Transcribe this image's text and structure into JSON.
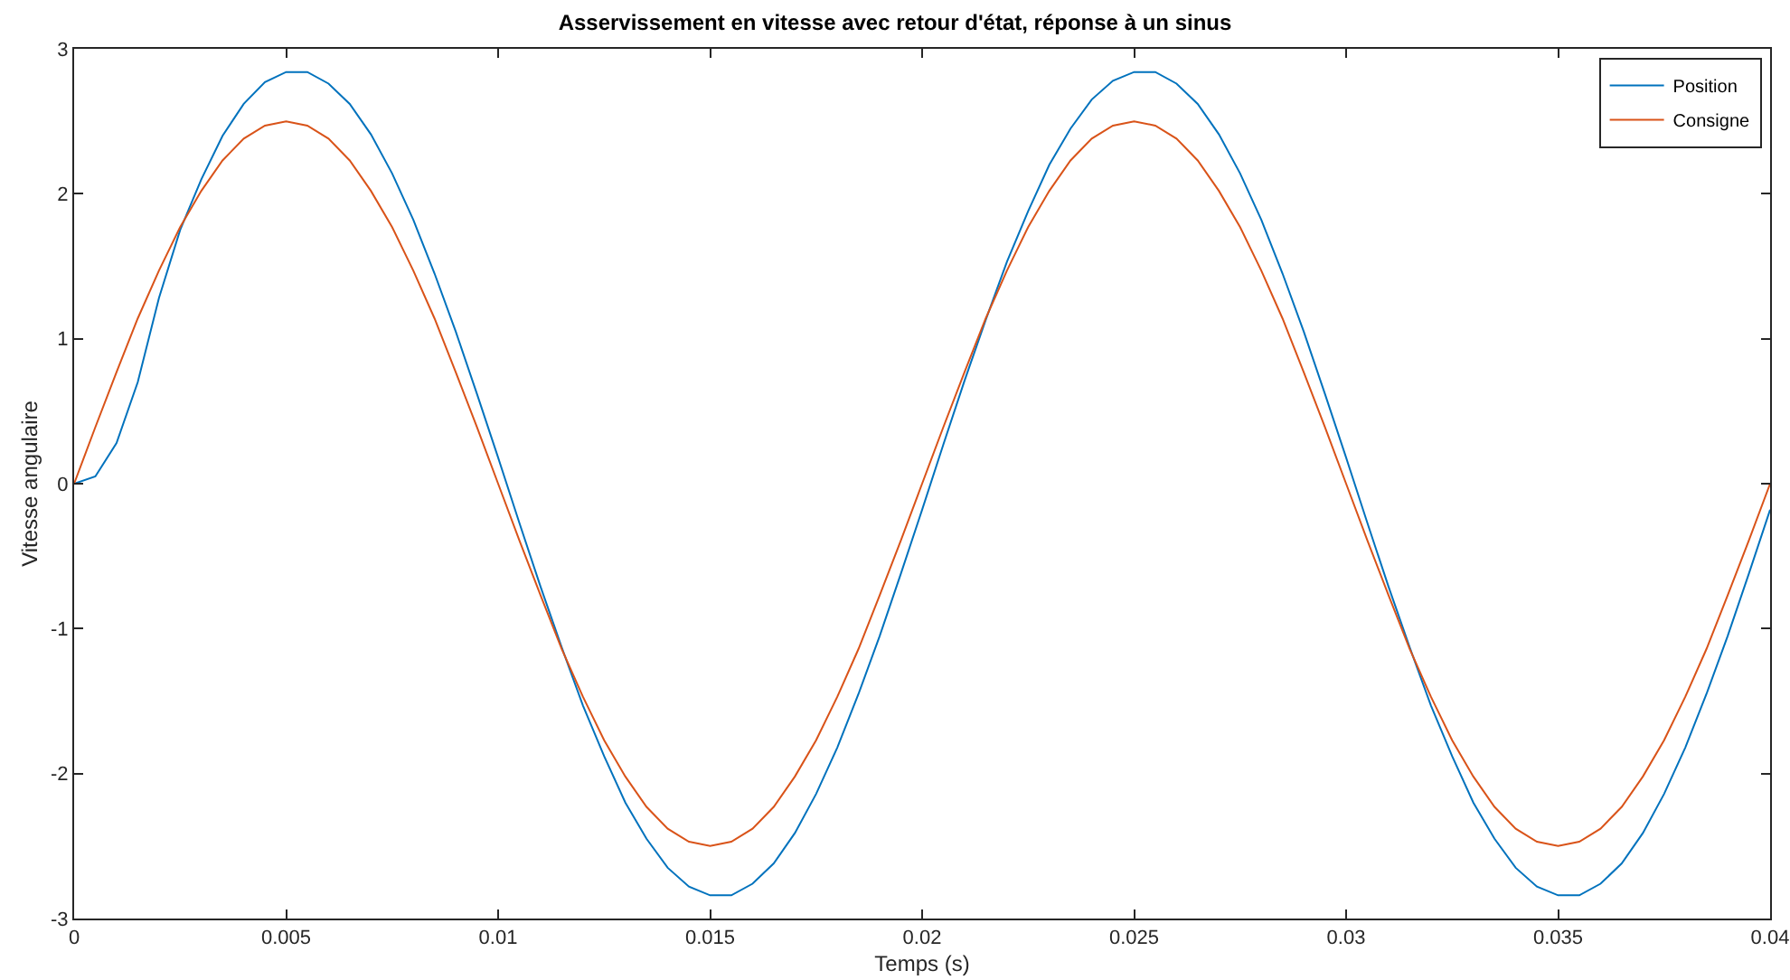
{
  "chart_data": {
    "type": "line",
    "title": "Asservissement en vitesse avec retour d'état, réponse à un sinus",
    "xlabel": "Temps (s)",
    "ylabel": "Vitesse angulaire",
    "x": [
      0,
      0.0005,
      0.001,
      0.0015,
      0.002,
      0.0025,
      0.003,
      0.0035,
      0.004,
      0.0045,
      0.005,
      0.0055,
      0.006,
      0.0065,
      0.007,
      0.0075,
      0.008,
      0.0085,
      0.009,
      0.0095,
      0.01,
      0.0105,
      0.011,
      0.0115,
      0.012,
      0.0125,
      0.013,
      0.0135,
      0.014,
      0.0145,
      0.015,
      0.0155,
      0.016,
      0.0165,
      0.017,
      0.0175,
      0.018,
      0.0185,
      0.019,
      0.0195,
      0.02,
      0.0205,
      0.021,
      0.0215,
      0.022,
      0.0225,
      0.023,
      0.0235,
      0.024,
      0.0245,
      0.025,
      0.0255,
      0.026,
      0.0265,
      0.027,
      0.0275,
      0.028,
      0.0285,
      0.029,
      0.0295,
      0.03,
      0.0305,
      0.031,
      0.0315,
      0.032,
      0.0325,
      0.033,
      0.0335,
      0.034,
      0.0345,
      0.035,
      0.0355,
      0.036,
      0.0365,
      0.037,
      0.0375,
      0.038,
      0.0385,
      0.039,
      0.0395,
      0.04
    ],
    "series": [
      {
        "name": "Position",
        "color": "#0072bd",
        "values": [
          0,
          0.05,
          0.28,
          0.7,
          1.28,
          1.75,
          2.1,
          2.4,
          2.62,
          2.77,
          2.84,
          2.84,
          2.76,
          2.62,
          2.41,
          2.14,
          1.82,
          1.45,
          1.05,
          0.62,
          0.18,
          -0.27,
          -0.71,
          -1.13,
          -1.53,
          -1.88,
          -2.2,
          -2.45,
          -2.65,
          -2.78,
          -2.84,
          -2.84,
          -2.76,
          -2.62,
          -2.41,
          -2.14,
          -1.82,
          -1.45,
          -1.05,
          -0.62,
          -0.18,
          0.27,
          0.71,
          1.13,
          1.53,
          1.88,
          2.2,
          2.45,
          2.65,
          2.78,
          2.84,
          2.84,
          2.76,
          2.62,
          2.41,
          2.14,
          1.82,
          1.45,
          1.05,
          0.62,
          0.18,
          -0.27,
          -0.71,
          -1.13,
          -1.53,
          -1.88,
          -2.2,
          -2.45,
          -2.65,
          -2.78,
          -2.84,
          -2.84,
          -2.76,
          -2.62,
          -2.41,
          -2.14,
          -1.82,
          -1.45,
          -1.05,
          -0.62,
          -0.18
        ]
      },
      {
        "name": "Consigne",
        "color": "#d95319",
        "values": [
          0,
          0.39,
          0.77,
          1.14,
          1.47,
          1.77,
          2.02,
          2.23,
          2.38,
          2.47,
          2.5,
          2.47,
          2.38,
          2.23,
          2.02,
          1.77,
          1.47,
          1.14,
          0.77,
          0.39,
          0,
          -0.39,
          -0.77,
          -1.14,
          -1.47,
          -1.77,
          -2.02,
          -2.23,
          -2.38,
          -2.47,
          -2.5,
          -2.47,
          -2.38,
          -2.23,
          -2.02,
          -1.77,
          -1.47,
          -1.14,
          -0.77,
          -0.39,
          0,
          0.39,
          0.77,
          1.14,
          1.47,
          1.77,
          2.02,
          2.23,
          2.38,
          2.47,
          2.5,
          2.47,
          2.38,
          2.23,
          2.02,
          1.77,
          1.47,
          1.14,
          0.77,
          0.39,
          0,
          -0.39,
          -0.77,
          -1.14,
          -1.47,
          -1.77,
          -2.02,
          -2.23,
          -2.38,
          -2.47,
          -2.5,
          -2.47,
          -2.38,
          -2.23,
          -2.02,
          -1.77,
          -1.47,
          -1.14,
          -0.77,
          -0.39,
          0
        ]
      }
    ],
    "xlim": [
      0,
      0.04
    ],
    "xticks": [
      0,
      0.005,
      0.01,
      0.015,
      0.02,
      0.025,
      0.03,
      0.035,
      0.04
    ],
    "ylim": [
      -3,
      3
    ],
    "yticks": [
      -3,
      -2,
      -1,
      0,
      1,
      2,
      3
    ],
    "legend": "top right",
    "grid": false,
    "marker": "none",
    "line_style": "solid"
  }
}
